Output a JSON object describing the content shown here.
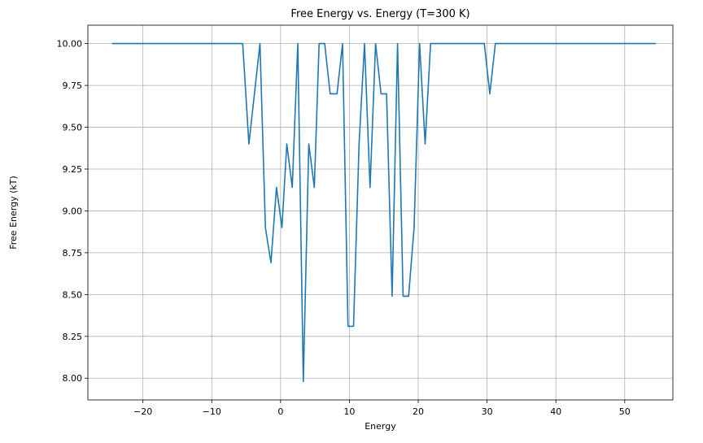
{
  "chart_data": {
    "type": "line",
    "title": "Free Energy vs. Energy (T=300 K)",
    "xlabel": "Energy",
    "ylabel": "Free Energy (kT)",
    "xlim": [
      -28,
      57
    ],
    "ylim": [
      7.87,
      10.11
    ],
    "xticks": [
      -20,
      -10,
      0,
      10,
      20,
      30,
      40,
      50
    ],
    "xtick_labels": [
      "−20",
      "−10",
      "0",
      "10",
      "20",
      "30",
      "40",
      "50"
    ],
    "yticks": [
      8.0,
      8.25,
      8.5,
      8.75,
      9.0,
      9.25,
      9.5,
      9.75,
      10.0
    ],
    "ytick_labels": [
      "8.00",
      "8.25",
      "8.50",
      "8.75",
      "9.00",
      "9.25",
      "9.50",
      "9.75",
      "10.00"
    ],
    "grid": true,
    "series": [
      {
        "color": "#1f77b4",
        "x": [
          -24.5,
          -5.5,
          -4.6,
          -3.0,
          -2.2,
          -1.4,
          -0.6,
          0.2,
          0.9,
          1.7,
          2.5,
          3.3,
          4.1,
          4.9,
          5.6,
          6.4,
          7.2,
          8.2,
          9.0,
          9.8,
          10.6,
          11.4,
          12.2,
          13.0,
          13.8,
          14.6,
          15.4,
          16.2,
          17.0,
          17.8,
          18.6,
          19.4,
          20.2,
          21.0,
          21.8,
          22.6,
          29.6,
          30.4,
          31.2,
          54.5
        ],
        "y": [
          10.0,
          10.0,
          9.4,
          10.0,
          8.9,
          8.69,
          9.14,
          8.9,
          9.4,
          9.14,
          10.0,
          7.98,
          9.4,
          9.14,
          10.0,
          10.0,
          9.7,
          9.7,
          10.0,
          8.31,
          8.31,
          9.4,
          10.0,
          9.14,
          10.0,
          9.7,
          9.7,
          8.49,
          10.0,
          8.49,
          8.49,
          8.9,
          10.0,
          9.4,
          10.0,
          10.0,
          10.0,
          9.7,
          10.0,
          10.0
        ]
      }
    ]
  }
}
